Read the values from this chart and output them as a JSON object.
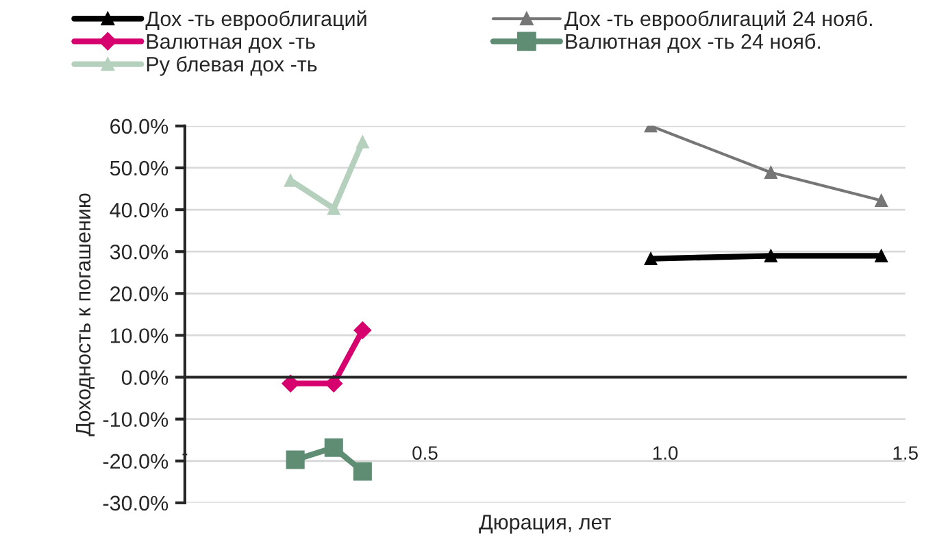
{
  "chart_data": {
    "type": "line",
    "xlabel": "Дюрация, лет",
    "ylabel": "Доходность к погашению",
    "xlim": [
      0,
      1.5
    ],
    "xticks": [
      {
        "value": 0,
        "label": "-"
      },
      {
        "value": 0.5,
        "label": "0.5"
      },
      {
        "value": 1.0,
        "label": "1.0"
      },
      {
        "value": 1.5,
        "label": "1.5"
      }
    ],
    "ylim": [
      -30,
      60
    ],
    "yticks": [
      {
        "value": -30,
        "label": "-30.0%"
      },
      {
        "value": -20,
        "label": "-20.0%"
      },
      {
        "value": -10,
        "label": "-10.0%"
      },
      {
        "value": 0,
        "label": "0.0%"
      },
      {
        "value": 10,
        "label": "10.0%"
      },
      {
        "value": 20,
        "label": "20.0%"
      },
      {
        "value": 30,
        "label": "30.0%"
      },
      {
        "value": 40,
        "label": "40.0%"
      },
      {
        "value": 50,
        "label": "50.0%"
      },
      {
        "value": 60,
        "label": "60.0%"
      }
    ],
    "grid": "y",
    "legend": "top",
    "series": [
      {
        "name": "Дох -ть еврооблигаций",
        "color": "#000000",
        "marker": "triangle",
        "x": [
          0.97,
          1.22,
          1.45
        ],
        "values": [
          28.3,
          29.0,
          29.0
        ]
      },
      {
        "name": "Валютная дох -ть",
        "color": "#d6006e",
        "marker": "diamond",
        "x": [
          0.22,
          0.31,
          0.37
        ],
        "values": [
          -1.5,
          -1.5,
          11.2
        ]
      },
      {
        "name": "Ру блевая дох -ть",
        "color": "#b5d1bd",
        "marker": "triangle",
        "x": [
          0.22,
          0.31,
          0.37
        ],
        "values": [
          47,
          40.3,
          56.2
        ]
      },
      {
        "name": "Дох -ть еврооблигаций 24 нояб.",
        "color": "#767676",
        "marker": "triangle",
        "x": [
          0.97,
          1.22,
          1.45
        ],
        "values": [
          60,
          48.9,
          42.2
        ]
      },
      {
        "name": "Валютная дох -ть 24 нояб.",
        "color": "#5e8d74",
        "marker": "square",
        "x": [
          0.23,
          0.31,
          0.37
        ],
        "values": [
          -19.7,
          -16.8,
          -22.5
        ]
      }
    ]
  }
}
